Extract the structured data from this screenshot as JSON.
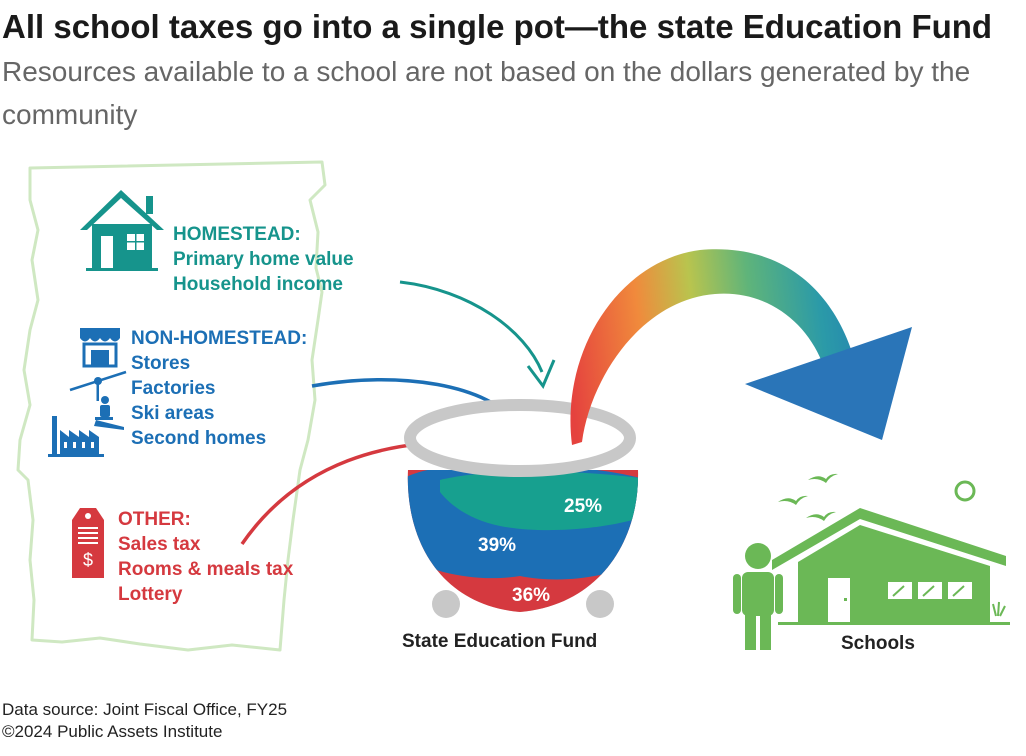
{
  "title": {
    "main": "All school taxes go into a single pot—the state Education Fund",
    "subtitle": "Resources available to a school are not based on the dollars generated by the community"
  },
  "sources": {
    "homestead": {
      "heading": "HOMESTEAD:",
      "items": [
        "Primary home value",
        "Household income"
      ]
    },
    "non_homestead": {
      "heading": "NON-HOMESTEAD:",
      "items": [
        "Stores",
        "Factories",
        "Ski areas",
        "Second homes"
      ]
    },
    "other": {
      "heading": "OTHER:",
      "items": [
        "Sales tax",
        "Rooms & meals tax",
        "Lottery"
      ]
    }
  },
  "pot": {
    "label": "State Education Fund"
  },
  "destination": {
    "label": "Schools"
  },
  "chart_data": {
    "type": "pie",
    "title": "State Education Fund",
    "slices": [
      {
        "label": "HOMESTEAD",
        "value": 25,
        "display": "25%",
        "color": "#17a08f"
      },
      {
        "label": "NON-HOMESTEAD",
        "value": 39,
        "display": "39%",
        "color": "#1c6fb5"
      },
      {
        "label": "OTHER",
        "value": 36,
        "display": "36%",
        "color": "#d5393f"
      }
    ]
  },
  "colors": {
    "teal": "#16948c",
    "blue": "#1c6fb5",
    "red": "#d5393f",
    "green": "#6bb856",
    "pot_gray": "#c8c8c8",
    "state_outline": "#cfe8c2"
  },
  "icons": [
    "house-icon",
    "storefront-icon",
    "ski-lift-icon",
    "factory-icon",
    "price-tag-icon",
    "student-icon",
    "school-building-icon",
    "birds-icon",
    "sun-icon"
  ],
  "footer": {
    "source": "Data source: Joint Fiscal Office, FY25",
    "copyright": "©2024 Public Assets Institute"
  }
}
